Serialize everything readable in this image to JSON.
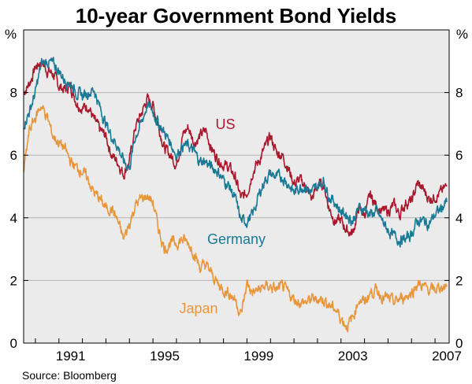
{
  "chart_data": {
    "type": "line",
    "title": "10-year Government Bond Yields",
    "ylabel_left": "%",
    "ylabel_right": "%",
    "source": "Source: Bloomberg",
    "ylim": [
      0,
      10
    ],
    "xlim": [
      1989.5,
      2007.6
    ],
    "grid": true,
    "y_ticks": [
      "0",
      "2",
      "4",
      "6",
      "8"
    ],
    "y_tick_values": [
      0,
      2,
      4,
      6,
      8
    ],
    "x_ticks": [
      "1991",
      "1995",
      "1999",
      "2003",
      "2007"
    ],
    "x_tick_values": [
      1991,
      1995,
      1999,
      2003,
      2007
    ],
    "colors": {
      "background": "#ebebeb",
      "grid": "#b4b4b4",
      "axis": "#000000"
    },
    "series": [
      {
        "name": "US",
        "color": "#a8192e",
        "x": [
          1989.5,
          1989.75,
          1990.0,
          1990.25,
          1990.5,
          1990.75,
          1991.0,
          1991.25,
          1991.5,
          1991.75,
          1992.0,
          1992.25,
          1992.5,
          1992.75,
          1993.0,
          1993.25,
          1993.5,
          1993.75,
          1994.0,
          1994.25,
          1994.5,
          1994.75,
          1995.0,
          1995.25,
          1995.5,
          1995.75,
          1996.0,
          1996.25,
          1996.5,
          1996.75,
          1997.0,
          1997.25,
          1997.5,
          1997.75,
          1998.0,
          1998.25,
          1998.5,
          1998.75,
          1999.0,
          1999.25,
          1999.5,
          1999.75,
          2000.0,
          2000.25,
          2000.5,
          2000.75,
          2001.0,
          2001.25,
          2001.5,
          2001.75,
          2002.0,
          2002.25,
          2002.5,
          2002.75,
          2003.0,
          2003.25,
          2003.5,
          2003.75,
          2004.0,
          2004.25,
          2004.5,
          2004.75,
          2005.0,
          2005.25,
          2005.5,
          2005.75,
          2006.0,
          2006.25,
          2006.5,
          2006.75,
          2007.0,
          2007.25,
          2007.5
        ],
        "values": [
          8.0,
          8.3,
          8.8,
          9.0,
          8.7,
          8.6,
          8.2,
          8.1,
          8.2,
          7.7,
          7.5,
          7.6,
          7.1,
          6.8,
          6.6,
          6.0,
          5.8,
          5.4,
          5.8,
          6.9,
          7.3,
          7.8,
          7.6,
          6.9,
          6.2,
          6.0,
          5.7,
          6.6,
          6.9,
          6.4,
          6.6,
          6.8,
          6.2,
          5.9,
          5.7,
          5.6,
          5.3,
          4.6,
          4.8,
          5.5,
          5.8,
          6.2,
          6.6,
          6.1,
          6.0,
          5.6,
          5.1,
          5.2,
          5.0,
          4.6,
          5.0,
          5.1,
          4.3,
          3.9,
          3.9,
          3.6,
          3.5,
          4.3,
          4.1,
          4.7,
          4.4,
          4.2,
          4.2,
          4.4,
          4.1,
          4.5,
          4.5,
          5.1,
          4.9,
          4.6,
          4.7,
          4.8,
          5.0
        ]
      },
      {
        "name": "Germany",
        "color": "#1a7a96",
        "x": [
          1989.5,
          1989.75,
          1990.0,
          1990.25,
          1990.5,
          1990.75,
          1991.0,
          1991.25,
          1991.5,
          1991.75,
          1992.0,
          1992.25,
          1992.5,
          1992.75,
          1993.0,
          1993.25,
          1993.5,
          1993.75,
          1994.0,
          1994.25,
          1994.5,
          1994.75,
          1995.0,
          1995.25,
          1995.5,
          1995.75,
          1996.0,
          1996.25,
          1996.5,
          1996.75,
          1997.0,
          1997.25,
          1997.5,
          1997.75,
          1998.0,
          1998.25,
          1998.5,
          1998.75,
          1999.0,
          1999.25,
          1999.5,
          1999.75,
          2000.0,
          2000.25,
          2000.5,
          2000.75,
          2001.0,
          2001.25,
          2001.5,
          2001.75,
          2002.0,
          2002.25,
          2002.5,
          2002.75,
          2003.0,
          2003.25,
          2003.5,
          2003.75,
          2004.0,
          2004.25,
          2004.5,
          2004.75,
          2005.0,
          2005.25,
          2005.5,
          2005.75,
          2006.0,
          2006.25,
          2006.5,
          2006.75,
          2007.0,
          2007.25,
          2007.5
        ],
        "values": [
          7.0,
          7.4,
          8.0,
          8.9,
          9.0,
          8.9,
          8.7,
          8.4,
          8.3,
          8.0,
          7.9,
          8.0,
          8.1,
          7.5,
          7.0,
          6.6,
          6.3,
          5.8,
          5.6,
          6.6,
          7.0,
          7.6,
          7.4,
          7.0,
          6.7,
          6.4,
          6.0,
          6.3,
          6.3,
          6.1,
          5.8,
          5.8,
          5.6,
          5.5,
          5.2,
          5.0,
          4.6,
          3.9,
          3.9,
          4.1,
          4.7,
          5.2,
          5.4,
          5.3,
          5.3,
          5.1,
          4.8,
          5.0,
          5.0,
          4.8,
          5.0,
          5.2,
          4.7,
          4.5,
          4.2,
          4.1,
          3.9,
          4.3,
          4.3,
          4.1,
          4.2,
          3.9,
          3.6,
          3.4,
          3.3,
          3.3,
          3.5,
          3.9,
          3.9,
          3.8,
          4.1,
          4.3,
          4.5
        ]
      },
      {
        "name": "Japan",
        "color": "#e8963c",
        "x": [
          1989.5,
          1989.75,
          1990.0,
          1990.25,
          1990.5,
          1990.75,
          1991.0,
          1991.25,
          1991.5,
          1991.75,
          1992.0,
          1992.25,
          1992.5,
          1992.75,
          1993.0,
          1993.25,
          1993.5,
          1993.75,
          1994.0,
          1994.25,
          1994.5,
          1994.75,
          1995.0,
          1995.25,
          1995.5,
          1995.75,
          1996.0,
          1996.25,
          1996.5,
          1996.75,
          1997.0,
          1997.25,
          1997.5,
          1997.75,
          1998.0,
          1998.25,
          1998.5,
          1998.75,
          1999.0,
          1999.25,
          1999.5,
          1999.75,
          2000.0,
          2000.25,
          2000.5,
          2000.75,
          2001.0,
          2001.25,
          2001.5,
          2001.75,
          2002.0,
          2002.25,
          2002.5,
          2002.75,
          2003.0,
          2003.25,
          2003.5,
          2003.75,
          2004.0,
          2004.25,
          2004.5,
          2004.75,
          2005.0,
          2005.25,
          2005.5,
          2005.75,
          2006.0,
          2006.25,
          2006.5,
          2006.75,
          2007.0,
          2007.25,
          2007.5
        ],
        "values": [
          5.5,
          6.8,
          7.2,
          7.6,
          7.2,
          6.6,
          6.4,
          6.2,
          5.8,
          5.6,
          5.5,
          5.2,
          4.8,
          4.6,
          4.3,
          4.3,
          3.9,
          3.3,
          3.8,
          4.4,
          4.6,
          4.7,
          4.5,
          3.6,
          3.0,
          3.2,
          3.2,
          3.3,
          3.2,
          2.9,
          2.4,
          2.5,
          2.2,
          1.9,
          1.7,
          1.6,
          1.4,
          0.9,
          1.9,
          1.6,
          1.7,
          1.8,
          1.8,
          1.7,
          1.8,
          1.6,
          1.4,
          1.3,
          1.3,
          1.4,
          1.4,
          1.4,
          1.2,
          1.1,
          0.8,
          0.55,
          0.8,
          1.4,
          1.3,
          1.6,
          1.7,
          1.5,
          1.4,
          1.3,
          1.4,
          1.5,
          1.6,
          1.9,
          1.8,
          1.7,
          1.7,
          1.8,
          1.8
        ]
      }
    ]
  }
}
